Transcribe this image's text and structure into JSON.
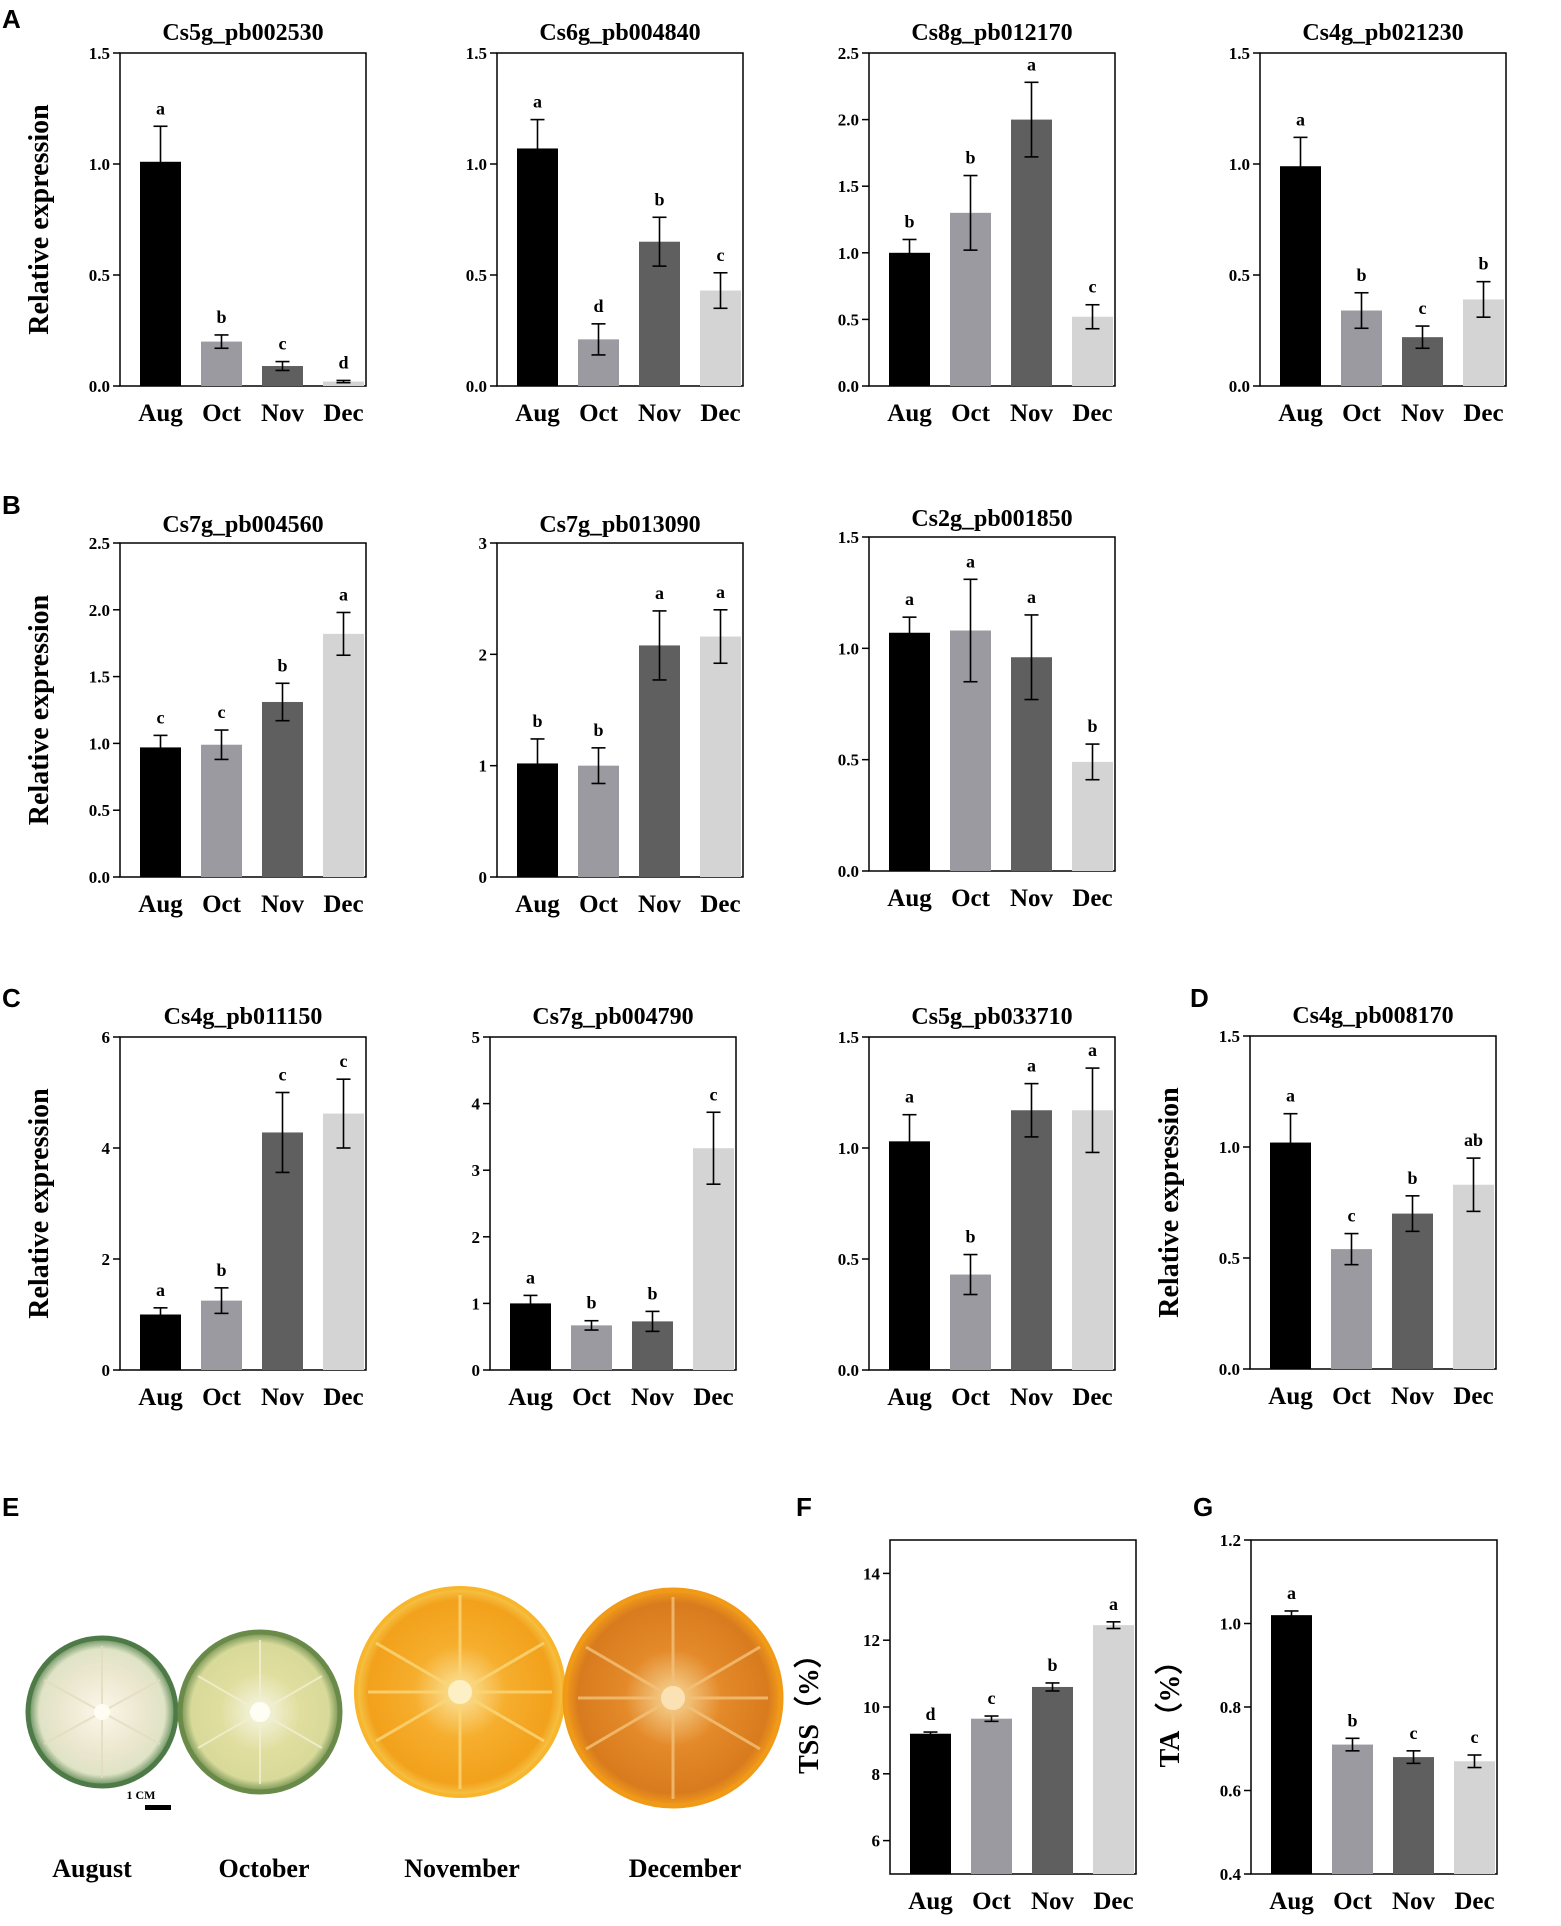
{
  "panel_letters": [
    "A",
    "B",
    "C",
    "D",
    "E",
    "F",
    "G"
  ],
  "colors": {
    "Aug": "#000000",
    "Oct": "#9a9aa0",
    "Nov": "#5f5f5f",
    "Dec": "#d4d4d4"
  },
  "photo": {
    "scale_bar_label": "1 CM",
    "months": [
      "August",
      "October",
      "November",
      "December"
    ]
  },
  "chart_data": [
    {
      "id": "A1",
      "type": "bar",
      "title": "Cs5g_pb002530",
      "ylabel": "Relative expression",
      "ylim": [
        0,
        1.5
      ],
      "yticks": [
        "0.0",
        "0.5",
        "1.0",
        "1.5"
      ],
      "categories": [
        "Aug",
        "Oct",
        "Nov",
        "Dec"
      ],
      "values": [
        1.01,
        0.2,
        0.09,
        0.02
      ],
      "errors": [
        0.16,
        0.03,
        0.02,
        0.005
      ],
      "letters": [
        "a",
        "b",
        "c",
        "d"
      ]
    },
    {
      "id": "A2",
      "type": "bar",
      "title": "Cs6g_pb004840",
      "ylabel": "",
      "ylim": [
        0,
        1.5
      ],
      "yticks": [
        "0.0",
        "0.5",
        "1.0",
        "1.5"
      ],
      "categories": [
        "Aug",
        "Oct",
        "Nov",
        "Dec"
      ],
      "values": [
        1.07,
        0.21,
        0.65,
        0.43
      ],
      "errors": [
        0.13,
        0.07,
        0.11,
        0.08
      ],
      "letters": [
        "a",
        "d",
        "b",
        "c"
      ]
    },
    {
      "id": "A3",
      "type": "bar",
      "title": "Cs8g_pb012170",
      "ylabel": "",
      "ylim": [
        0,
        2.5
      ],
      "yticks": [
        "0.0",
        "0.5",
        "1.0",
        "1.5",
        "2.0",
        "2.5"
      ],
      "categories": [
        "Aug",
        "Oct",
        "Nov",
        "Dec"
      ],
      "values": [
        1.0,
        1.3,
        2.0,
        0.52
      ],
      "errors": [
        0.1,
        0.28,
        0.28,
        0.09
      ],
      "letters": [
        "b",
        "b",
        "a",
        "c"
      ]
    },
    {
      "id": "A4",
      "type": "bar",
      "title": "Cs4g_pb021230",
      "ylabel": "",
      "ylim": [
        0,
        1.5
      ],
      "yticks": [
        "0.0",
        "0.5",
        "1.0",
        "1.5"
      ],
      "categories": [
        "Aug",
        "Oct",
        "Nov",
        "Dec"
      ],
      "values": [
        0.99,
        0.34,
        0.22,
        0.39
      ],
      "errors": [
        0.13,
        0.08,
        0.05,
        0.08
      ],
      "letters": [
        "a",
        "b",
        "c",
        "b"
      ]
    },
    {
      "id": "B1",
      "type": "bar",
      "title": "Cs7g_pb004560",
      "ylabel": "Relative expression",
      "ylim": [
        0,
        2.5
      ],
      "yticks": [
        "0.0",
        "0.5",
        "1.0",
        "1.5",
        "2.0",
        "2.5"
      ],
      "categories": [
        "Aug",
        "Oct",
        "Nov",
        "Dec"
      ],
      "values": [
        0.97,
        0.99,
        1.31,
        1.82
      ],
      "errors": [
        0.09,
        0.11,
        0.14,
        0.16
      ],
      "letters": [
        "c",
        "c",
        "b",
        "a"
      ]
    },
    {
      "id": "B2",
      "type": "bar",
      "title": "Cs7g_pb013090",
      "ylabel": "",
      "ylim": [
        0,
        3
      ],
      "yticks": [
        "0",
        "1",
        "2",
        "3"
      ],
      "categories": [
        "Aug",
        "Oct",
        "Nov",
        "Dec"
      ],
      "values": [
        1.02,
        1.0,
        2.08,
        2.16
      ],
      "errors": [
        0.22,
        0.16,
        0.31,
        0.24
      ],
      "letters": [
        "b",
        "b",
        "a",
        "a"
      ]
    },
    {
      "id": "B3",
      "type": "bar",
      "title": "Cs2g_pb001850",
      "ylabel": "",
      "ylim": [
        0,
        1.5
      ],
      "yticks": [
        "0.0",
        "0.5",
        "1.0",
        "1.5"
      ],
      "categories": [
        "Aug",
        "Oct",
        "Nov",
        "Dec"
      ],
      "values": [
        1.07,
        1.08,
        0.96,
        0.49
      ],
      "errors": [
        0.07,
        0.23,
        0.19,
        0.08
      ],
      "letters": [
        "a",
        "a",
        "a",
        "b"
      ]
    },
    {
      "id": "C1",
      "type": "bar",
      "title": "Cs4g_pb011150",
      "ylabel": "Relative expression",
      "ylim": [
        0,
        6
      ],
      "yticks": [
        "0",
        "2",
        "4",
        "6"
      ],
      "categories": [
        "Aug",
        "Oct",
        "Nov",
        "Dec"
      ],
      "values": [
        1.0,
        1.25,
        4.28,
        4.62
      ],
      "errors": [
        0.12,
        0.23,
        0.72,
        0.62
      ],
      "letters": [
        "a",
        "b",
        "c",
        "c"
      ]
    },
    {
      "id": "C2",
      "type": "bar",
      "title": "Cs7g_pb004790",
      "ylabel": "",
      "ylim": [
        0,
        5
      ],
      "yticks": [
        "0",
        "1",
        "2",
        "3",
        "4",
        "5"
      ],
      "categories": [
        "Aug",
        "Oct",
        "Nov",
        "Dec"
      ],
      "values": [
        1.0,
        0.67,
        0.73,
        3.33
      ],
      "errors": [
        0.12,
        0.07,
        0.15,
        0.54
      ],
      "letters": [
        "a",
        "b",
        "b",
        "c"
      ]
    },
    {
      "id": "C3",
      "type": "bar",
      "title": "Cs5g_pb033710",
      "ylabel": "",
      "ylim": [
        0,
        1.5
      ],
      "yticks": [
        "0.0",
        "0.5",
        "1.0",
        "1.5"
      ],
      "categories": [
        "Aug",
        "Oct",
        "Nov",
        "Dec"
      ],
      "values": [
        1.03,
        0.43,
        1.17,
        1.17
      ],
      "errors": [
        0.12,
        0.09,
        0.12,
        0.19
      ],
      "letters": [
        "a",
        "b",
        "a",
        "a"
      ]
    },
    {
      "id": "D",
      "type": "bar",
      "title": "Cs4g_pb008170",
      "ylabel": "Relative expression",
      "ylim": [
        0,
        1.5
      ],
      "yticks": [
        "0.0",
        "0.5",
        "1.0",
        "1.5"
      ],
      "categories": [
        "Aug",
        "Oct",
        "Nov",
        "Dec"
      ],
      "values": [
        1.02,
        0.54,
        0.7,
        0.83
      ],
      "errors": [
        0.13,
        0.07,
        0.08,
        0.12
      ],
      "letters": [
        "a",
        "c",
        "b",
        "ab"
      ]
    },
    {
      "id": "F",
      "type": "bar",
      "title": "",
      "ylabel": "TSS（%）",
      "ylim": [
        5,
        15
      ],
      "yticks": [
        "6",
        "8",
        "10",
        "12",
        "14"
      ],
      "categories": [
        "Aug",
        "Oct",
        "Nov",
        "Dec"
      ],
      "values": [
        9.2,
        9.65,
        10.6,
        12.45
      ],
      "errors": [
        0.05,
        0.08,
        0.12,
        0.1
      ],
      "letters": [
        "d",
        "c",
        "b",
        "a"
      ]
    },
    {
      "id": "G",
      "type": "bar",
      "title": "",
      "ylabel": "TA（%）",
      "ylim": [
        0.4,
        1.2
      ],
      "yticks": [
        "0.4",
        "0.6",
        "0.8",
        "1.0",
        "1.2"
      ],
      "categories": [
        "Aug",
        "Oct",
        "Nov",
        "Dec"
      ],
      "values": [
        1.02,
        0.71,
        0.68,
        0.67
      ],
      "errors": [
        0.01,
        0.015,
        0.015,
        0.015
      ],
      "letters": [
        "a",
        "b",
        "c",
        "c"
      ]
    }
  ]
}
